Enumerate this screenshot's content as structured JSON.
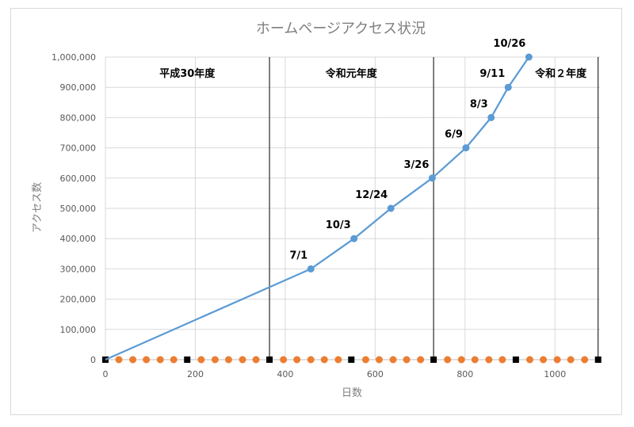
{
  "chart_data": {
    "type": "scatter",
    "title": "ホームページアクセス状況",
    "xlabel": "日数",
    "ylabel": "アクセス数",
    "xlim": [
      0,
      1100
    ],
    "ylim": [
      0,
      1000000
    ],
    "grid": true,
    "x_ticks": [
      "0",
      "200",
      "400",
      "600",
      "800",
      "1000"
    ],
    "x_tick_values": [
      0,
      200,
      400,
      600,
      800,
      1000
    ],
    "y_ticks": [
      "0",
      "100,000",
      "200,000",
      "300,000",
      "400,000",
      "500,000",
      "600,000",
      "700,000",
      "800,000",
      "900,000",
      "1,000,000"
    ],
    "y_tick_values": [
      0,
      100000,
      200000,
      300000,
      400000,
      500000,
      600000,
      700000,
      800000,
      900000,
      1000000
    ],
    "series": [
      {
        "color": "#5b9bd5",
        "x": [
          0,
          457,
          553,
          635,
          727,
          802,
          858,
          896,
          942
        ],
        "y": [
          0,
          300000,
          400000,
          500000,
          600000,
          700000,
          800000,
          900000,
          1000000
        ],
        "labels": [
          "",
          "7/1",
          "10/3",
          "12/24",
          "3/26",
          "6/9",
          "8/3",
          "9/11",
          "10/26"
        ]
      },
      {
        "color": "#ed7d31",
        "x": [
          30,
          61,
          91,
          122,
          152,
          213,
          244,
          274,
          305,
          335,
          396,
          426,
          457,
          487,
          518,
          579,
          609,
          640,
          670,
          701,
          761,
          792,
          822,
          853,
          883,
          944,
          974,
          1005,
          1035,
          1066
        ],
        "y": [
          0,
          0,
          0,
          0,
          0,
          0,
          0,
          0,
          0,
          0,
          0,
          0,
          0,
          0,
          0,
          0,
          0,
          0,
          0,
          0,
          0,
          0,
          0,
          0,
          0,
          0,
          0,
          0,
          0,
          0
        ]
      },
      {
        "color": "#000000",
        "x": [
          0,
          182,
          365,
          547,
          730,
          913,
          1096
        ],
        "y": [
          0,
          0,
          0,
          0,
          0,
          0,
          0
        ]
      }
    ],
    "dividers": [
      365,
      730,
      1096
    ],
    "eras": [
      {
        "label": "平成30年度",
        "x": 182
      },
      {
        "label": "令和元年度",
        "x": 547
      },
      {
        "label": "令和２年度",
        "x": 1013
      }
    ]
  }
}
